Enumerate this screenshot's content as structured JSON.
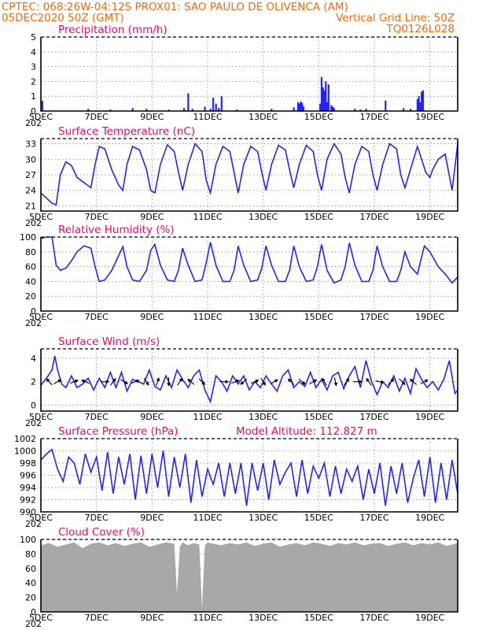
{
  "header": {
    "left1": "CPTEC:   068:26W-04:12S   PROX01: SAO PAULO DE OLIVENCA (AM)",
    "left2": "05DEC2020 50Z (GMT)",
    "right2": "Vertical Grid Line: 50Z",
    "right3": "TQ0126L028"
  },
  "x_tick_labels": [
    "5DEC",
    "7DEC",
    "9DEC",
    "11DEC",
    "13DEC",
    "15DEC",
    "17DEC",
    "19DEC"
  ],
  "x_tick_days": [
    5,
    7,
    9,
    11,
    13,
    15,
    17,
    19
  ],
  "x_range": [
    5,
    20
  ],
  "year_stub": "202",
  "chart_data": [
    {
      "panel": "precipitation",
      "type": "bar",
      "title": "Precipitation (mm/h)",
      "ylim": [
        0,
        5
      ],
      "yticks": [
        0,
        1,
        2,
        3,
        4,
        5
      ],
      "grid": true,
      "x": [
        5.05,
        6.7,
        7.5,
        8.3,
        8.8,
        9.6,
        10.15,
        10.3,
        10.45,
        10.9,
        11.1,
        11.2,
        11.3,
        11.4,
        11.5,
        12.05,
        13.3,
        14.1,
        14.25,
        14.3,
        14.35,
        14.4,
        14.45,
        15.05,
        15.1,
        15.15,
        15.2,
        15.25,
        15.3,
        15.35,
        15.45,
        15.5,
        15.55,
        16.3,
        16.5,
        16.7,
        17.4,
        18.05,
        18.3,
        18.55,
        18.6,
        18.65,
        18.7,
        18.75
      ],
      "values": [
        0.7,
        0.15,
        0.1,
        0.2,
        0.15,
        0.1,
        0.2,
        1.2,
        0.15,
        0.3,
        0.15,
        0.9,
        0.5,
        0.2,
        1.0,
        0.1,
        0.15,
        0.25,
        0.6,
        0.5,
        0.65,
        0.55,
        0.3,
        0.5,
        2.3,
        1.6,
        1.4,
        2.0,
        0.6,
        1.8,
        0.4,
        0.3,
        0.2,
        0.15,
        0.1,
        0.15,
        0.7,
        0.2,
        0.15,
        0.8,
        1.0,
        0.6,
        1.3,
        1.4
      ]
    },
    {
      "panel": "temperature",
      "type": "line",
      "title": "Surface Temperature (nC)",
      "ylim": [
        20,
        34
      ],
      "yticks": [
        21,
        24,
        27,
        30,
        33
      ],
      "grid": true,
      "x": [
        5.0,
        5.2,
        5.4,
        5.55,
        5.7,
        5.9,
        6.1,
        6.3,
        6.55,
        6.8,
        6.95,
        7.1,
        7.3,
        7.55,
        7.8,
        7.95,
        8.1,
        8.3,
        8.55,
        8.8,
        8.95,
        9.1,
        9.3,
        9.55,
        9.8,
        9.95,
        10.1,
        10.3,
        10.55,
        10.8,
        10.95,
        11.1,
        11.3,
        11.55,
        11.8,
        11.95,
        12.1,
        12.3,
        12.55,
        12.8,
        12.95,
        13.1,
        13.3,
        13.55,
        13.8,
        13.95,
        14.1,
        14.3,
        14.55,
        14.8,
        14.95,
        15.1,
        15.3,
        15.55,
        15.8,
        15.95,
        16.1,
        16.3,
        16.55,
        16.8,
        16.95,
        17.1,
        17.3,
        17.55,
        17.8,
        17.95,
        18.1,
        18.3,
        18.55,
        18.7,
        18.85,
        19.0,
        19.1,
        19.3,
        19.55,
        19.8,
        20.0
      ],
      "values": [
        23.5,
        22.5,
        21.5,
        21.2,
        27.0,
        29.5,
        28.8,
        26.5,
        25.5,
        24.5,
        29.0,
        32.5,
        32.0,
        28.0,
        25.0,
        24.0,
        29.0,
        32.5,
        31.8,
        28.0,
        24.0,
        23.5,
        29.0,
        32.8,
        31.5,
        27.5,
        24.0,
        29.0,
        33.0,
        31.5,
        26.0,
        23.5,
        29.0,
        32.5,
        31.5,
        27.5,
        23.5,
        29.0,
        32.5,
        31.5,
        27.5,
        24.0,
        29.0,
        32.7,
        31.8,
        28.0,
        24.5,
        29.0,
        32.7,
        31.5,
        27.0,
        24.0,
        30.0,
        33.0,
        31.0,
        26.5,
        23.5,
        29.0,
        32.5,
        31.5,
        27.0,
        24.0,
        29.0,
        33.0,
        32.0,
        27.0,
        24.5,
        28.0,
        32.5,
        30.0,
        27.5,
        26.5,
        28.0,
        30.0,
        31.0,
        24.0,
        33.0
      ]
    },
    {
      "panel": "humidity",
      "type": "line",
      "title": "Relative Humidity (%)",
      "ylim": [
        0,
        100
      ],
      "yticks": [
        0,
        20,
        40,
        60,
        80,
        100
      ],
      "grid": true,
      "x": [
        5.0,
        5.2,
        5.4,
        5.55,
        5.7,
        5.9,
        6.1,
        6.3,
        6.55,
        6.8,
        6.95,
        7.1,
        7.3,
        7.55,
        7.8,
        7.95,
        8.1,
        8.3,
        8.55,
        8.8,
        8.95,
        9.1,
        9.3,
        9.55,
        9.8,
        9.95,
        10.1,
        10.3,
        10.55,
        10.8,
        10.95,
        11.1,
        11.3,
        11.55,
        11.8,
        11.95,
        12.1,
        12.3,
        12.55,
        12.8,
        12.95,
        13.1,
        13.3,
        13.55,
        13.8,
        13.95,
        14.1,
        14.3,
        14.55,
        14.8,
        14.95,
        15.1,
        15.3,
        15.55,
        15.8,
        15.95,
        16.1,
        16.3,
        16.55,
        16.8,
        16.95,
        17.1,
        17.3,
        17.55,
        17.8,
        17.95,
        18.1,
        18.3,
        18.55,
        18.8,
        19.0,
        19.3,
        19.55,
        19.8,
        20.0
      ],
      "values": [
        98,
        100,
        100,
        62,
        55,
        58,
        68,
        80,
        88,
        85,
        60,
        40,
        42,
        55,
        75,
        87,
        60,
        42,
        40,
        55,
        82,
        90,
        62,
        42,
        40,
        55,
        85,
        62,
        40,
        42,
        65,
        93,
        62,
        40,
        40,
        55,
        88,
        62,
        40,
        42,
        58,
        88,
        62,
        40,
        40,
        55,
        88,
        60,
        40,
        42,
        60,
        90,
        55,
        38,
        42,
        60,
        92,
        62,
        40,
        40,
        55,
        88,
        60,
        40,
        40,
        55,
        80,
        60,
        50,
        88,
        80,
        60,
        50,
        38,
        46
      ]
    },
    {
      "panel": "wind",
      "type": "line",
      "title": "Surface Wind (m/s)",
      "ylim": [
        -0.5,
        4.8
      ],
      "yticks": [
        0,
        2,
        4
      ],
      "grid": true,
      "x": [
        5.0,
        5.2,
        5.4,
        5.5,
        5.6,
        5.75,
        5.9,
        6.1,
        6.3,
        6.5,
        6.7,
        6.9,
        7.1,
        7.3,
        7.5,
        7.7,
        7.9,
        8.1,
        8.3,
        8.5,
        8.7,
        8.9,
        9.1,
        9.3,
        9.5,
        9.7,
        9.9,
        10.1,
        10.3,
        10.5,
        10.7,
        10.9,
        11.1,
        11.3,
        11.5,
        11.7,
        11.9,
        12.1,
        12.3,
        12.5,
        12.7,
        12.9,
        13.1,
        13.3,
        13.5,
        13.7,
        13.9,
        14.1,
        14.3,
        14.5,
        14.7,
        14.9,
        15.1,
        15.3,
        15.5,
        15.7,
        15.9,
        16.1,
        16.3,
        16.5,
        16.7,
        16.9,
        17.1,
        17.3,
        17.5,
        17.7,
        17.9,
        18.1,
        18.3,
        18.5,
        18.7,
        18.9,
        19.1,
        19.3,
        19.5,
        19.7,
        19.9,
        20.0
      ],
      "values": [
        1.7,
        2.3,
        3.0,
        4.2,
        3.0,
        1.8,
        1.5,
        2.5,
        1.5,
        1.8,
        2.3,
        1.3,
        2.3,
        1.5,
        2.8,
        1.5,
        2.8,
        1.2,
        2.2,
        2.0,
        1.8,
        3.0,
        1.6,
        1.3,
        2.5,
        1.5,
        3.0,
        2.2,
        1.5,
        2.5,
        3.0,
        1.3,
        0.3,
        2.5,
        2.0,
        1.2,
        2.5,
        1.8,
        2.5,
        1.3,
        2.0,
        1.5,
        2.5,
        1.8,
        1.2,
        2.5,
        3.0,
        1.5,
        2.0,
        1.6,
        2.8,
        1.5,
        2.2,
        1.3,
        2.5,
        2.8,
        1.4,
        2.5,
        3.3,
        1.5,
        3.8,
        2.0,
        0.9,
        2.0,
        1.5,
        2.5,
        1.2,
        2.3,
        1.0,
        3.1,
        2.2,
        1.5,
        2.0,
        1.3,
        2.2,
        3.8,
        1.0,
        1.3
      ],
      "vectors": {
        "x": [
          5.3,
          5.6,
          6.2,
          6.6,
          7.3,
          7.6,
          8.0,
          8.4,
          8.8,
          9.2,
          9.6,
          10.0,
          10.4,
          10.8,
          11.6,
          12.0,
          12.3,
          12.7,
          13.0,
          13.4,
          14.0,
          14.4,
          14.8,
          15.2,
          15.6,
          16.0,
          16.4,
          16.8,
          17.2,
          17.6,
          18.0,
          18.4,
          18.8
        ],
        "u": [
          -0.8,
          1.0,
          0.8,
          -0.9,
          1.0,
          0.6,
          0.8,
          0.8,
          0.5,
          0.3,
          0.0,
          0.5,
          -0.6,
          0.6,
          1.0,
          0.8,
          -0.7,
          0.9,
          0.5,
          0.8,
          -0.6,
          0.7,
          0.8,
          -0.5,
          0.2,
          0.5,
          0.8,
          -0.5,
          0.9,
          0.6,
          0.6,
          -0.7,
          0.9
        ],
        "v": [
          0.9,
          0.6,
          0.3,
          0.4,
          0.0,
          0.8,
          -0.5,
          0.3,
          -0.8,
          0.9,
          -1.0,
          0.7,
          0.5,
          -0.6,
          0.0,
          0.3,
          -0.6,
          0.4,
          -0.8,
          0.5,
          0.6,
          -0.6,
          0.5,
          0.8,
          -0.9,
          0.7,
          0.0,
          0.7,
          -0.2,
          0.6,
          -0.6,
          0.6,
          0.5
        ]
      }
    },
    {
      "panel": "pressure",
      "type": "line",
      "title": "Surface Pressure (hPa)",
      "annotation": "Model Altitude: 112.827 m",
      "ylim": [
        990,
        1002
      ],
      "yticks": [
        990,
        992,
        994,
        996,
        998,
        1000,
        1002
      ],
      "grid": true,
      "x": [
        5.0,
        5.2,
        5.4,
        5.6,
        5.8,
        6.0,
        6.2,
        6.4,
        6.6,
        6.8,
        7.0,
        7.2,
        7.4,
        7.6,
        7.8,
        8.0,
        8.2,
        8.4,
        8.6,
        8.8,
        9.0,
        9.2,
        9.4,
        9.6,
        9.8,
        10.0,
        10.2,
        10.4,
        10.6,
        10.8,
        11.0,
        11.2,
        11.4,
        11.6,
        11.8,
        12.0,
        12.2,
        12.4,
        12.6,
        12.8,
        13.0,
        13.2,
        13.4,
        13.6,
        13.8,
        14.0,
        14.2,
        14.4,
        14.6,
        14.8,
        15.0,
        15.2,
        15.4,
        15.6,
        15.8,
        16.0,
        16.2,
        16.4,
        16.6,
        16.8,
        17.0,
        17.2,
        17.4,
        17.6,
        17.8,
        18.0,
        18.2,
        18.4,
        18.6,
        18.8,
        19.0,
        19.2,
        19.4,
        19.6,
        19.8,
        20.0
      ],
      "values": [
        998.5,
        999.5,
        1000.2,
        997.0,
        995.0,
        999.0,
        998.0,
        994.5,
        999.5,
        996.5,
        999.0,
        993.5,
        999.8,
        993.0,
        999.0,
        994.5,
        999.5,
        992.0,
        999.2,
        993.0,
        999.5,
        994.0,
        1000.0,
        992.5,
        999.0,
        994.0,
        999.5,
        991.5,
        998.5,
        992.5,
        997.0,
        994.5,
        998.0,
        992.5,
        998.0,
        993.0,
        998.0,
        991.0,
        998.0,
        993.5,
        998.0,
        992.0,
        998.5,
        994.5,
        996.5,
        998.0,
        992.5,
        998.5,
        993.0,
        997.5,
        995.5,
        998.0,
        992.5,
        997.5,
        993.0,
        997.0,
        995.0,
        997.5,
        992.0,
        997.0,
        993.0,
        998.0,
        991.0,
        997.5,
        993.0,
        998.0,
        991.5,
        995.5,
        998.5,
        992.5,
        999.0,
        991.5,
        998.0,
        992.0,
        998.5,
        993.0
      ]
    },
    {
      "panel": "cloud",
      "type": "area",
      "title": "Cloud Cover (%)",
      "ylim": [
        0,
        100
      ],
      "yticks": [
        0,
        20,
        40,
        60,
        80,
        100
      ],
      "grid": true,
      "x": [
        5.0,
        5.3,
        5.6,
        5.9,
        6.2,
        6.5,
        6.8,
        7.1,
        7.4,
        7.7,
        8.0,
        8.3,
        8.6,
        8.9,
        9.2,
        9.5,
        9.8,
        9.9,
        10.0,
        10.1,
        10.3,
        10.5,
        10.7,
        10.8,
        10.9,
        11.0,
        11.2,
        11.5,
        11.8,
        12.1,
        12.4,
        12.7,
        13.0,
        13.3,
        13.6,
        13.9,
        14.2,
        14.5,
        14.8,
        15.1,
        15.4,
        15.7,
        16.0,
        16.3,
        16.6,
        16.9,
        17.2,
        17.5,
        17.8,
        18.1,
        18.4,
        18.7,
        19.0,
        19.3,
        19.6,
        20.0
      ],
      "values": [
        92,
        95,
        90,
        93,
        96,
        88,
        94,
        96,
        92,
        95,
        91,
        94,
        96,
        90,
        93,
        96,
        94,
        25,
        90,
        96,
        92,
        95,
        93,
        5,
        92,
        96,
        94,
        92,
        95,
        93,
        96,
        91,
        94,
        96,
        90,
        93,
        95,
        92,
        96,
        94,
        91,
        95,
        93,
        96,
        92,
        94,
        95,
        91,
        94,
        96,
        92,
        95,
        93,
        96,
        91,
        95
      ]
    }
  ]
}
